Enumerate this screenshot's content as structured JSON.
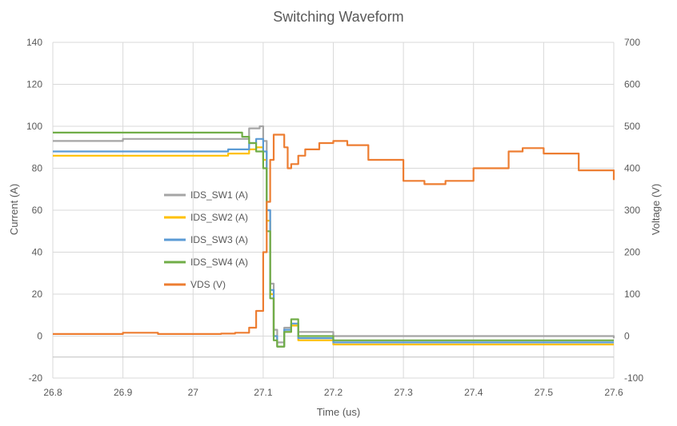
{
  "chart_data": {
    "type": "line",
    "title": "Switching Waveform",
    "xlabel": "Time (us)",
    "ylabel_left": "Current (A)",
    "ylabel_right": "Voltage (V)",
    "xlim": [
      26.8,
      27.6
    ],
    "ylim_left": [
      -20,
      140
    ],
    "ylim_right": [
      -100,
      700
    ],
    "x_ticks": [
      "26.8",
      "26.9",
      "27",
      "27.1",
      "27.2",
      "27.3",
      "27.4",
      "27.5",
      "27.6"
    ],
    "y_left_ticks": [
      "-20",
      "0",
      "20",
      "40",
      "60",
      "80",
      "100",
      "120",
      "140"
    ],
    "y_right_ticks": [
      "-100",
      "0",
      "100",
      "200",
      "300",
      "400",
      "500",
      "600",
      "700"
    ],
    "grid": true,
    "legend_position": "center-left",
    "series": [
      {
        "name": "IDS_SW1 (A)",
        "axis": "left",
        "color": "#a5a5a5",
        "x": [
          26.8,
          26.9,
          27.0,
          27.05,
          27.08,
          27.095,
          27.1,
          27.105,
          27.11,
          27.115,
          27.12,
          27.13,
          27.14,
          27.15,
          27.2,
          27.3,
          27.4,
          27.5,
          27.6
        ],
        "y": [
          93,
          94,
          94,
          94,
          99,
          100,
          93,
          60,
          25,
          3,
          -3,
          4,
          5,
          2,
          0,
          0,
          0,
          0,
          -1
        ]
      },
      {
        "name": "IDS_SW2 (A)",
        "axis": "left",
        "color": "#ffc000",
        "x": [
          26.8,
          26.9,
          27.0,
          27.05,
          27.08,
          27.09,
          27.1,
          27.105,
          27.11,
          27.115,
          27.12,
          27.13,
          27.14,
          27.15,
          27.2,
          27.3,
          27.4,
          27.5,
          27.6
        ],
        "y": [
          86,
          86,
          86,
          87,
          89,
          90,
          84,
          55,
          20,
          0,
          -5,
          2,
          5,
          -2,
          -4,
          -4,
          -4,
          -4,
          -4
        ]
      },
      {
        "name": "IDS_SW3 (A)",
        "axis": "left",
        "color": "#5b9bd5",
        "x": [
          26.8,
          26.9,
          27.0,
          27.05,
          27.08,
          27.09,
          27.1,
          27.105,
          27.11,
          27.115,
          27.12,
          27.13,
          27.14,
          27.15,
          27.2,
          27.3,
          27.4,
          27.5,
          27.6
        ],
        "y": [
          88,
          88,
          88,
          89,
          92,
          94,
          88,
          60,
          22,
          0,
          -5,
          3,
          6,
          -1,
          -3,
          -3,
          -3,
          -3,
          -3
        ]
      },
      {
        "name": "IDS_SW4 (A)",
        "axis": "left",
        "color": "#70ad47",
        "x": [
          26.8,
          26.9,
          27.0,
          27.05,
          27.07,
          27.08,
          27.09,
          27.1,
          27.105,
          27.11,
          27.115,
          27.12,
          27.13,
          27.14,
          27.15,
          27.2,
          27.3,
          27.4,
          27.5,
          27.6
        ],
        "y": [
          97,
          97,
          97,
          97,
          95,
          92,
          88,
          80,
          50,
          18,
          -2,
          -5,
          2,
          8,
          0,
          -2,
          -2,
          -2,
          -2,
          -2
        ]
      },
      {
        "name": "VDS (V)",
        "axis": "right",
        "color": "#ed7d31",
        "x": [
          26.8,
          26.9,
          26.95,
          27.0,
          27.04,
          27.06,
          27.08,
          27.09,
          27.1,
          27.105,
          27.11,
          27.115,
          27.12,
          27.13,
          27.135,
          27.14,
          27.15,
          27.16,
          27.18,
          27.2,
          27.22,
          27.25,
          27.3,
          27.33,
          27.36,
          27.4,
          27.45,
          27.47,
          27.5,
          27.55,
          27.6
        ],
        "y": [
          5,
          8,
          5,
          5,
          6,
          8,
          20,
          60,
          200,
          320,
          420,
          480,
          480,
          450,
          400,
          410,
          430,
          445,
          460,
          465,
          455,
          420,
          370,
          362,
          370,
          400,
          440,
          448,
          435,
          395,
          372
        ]
      }
    ]
  }
}
